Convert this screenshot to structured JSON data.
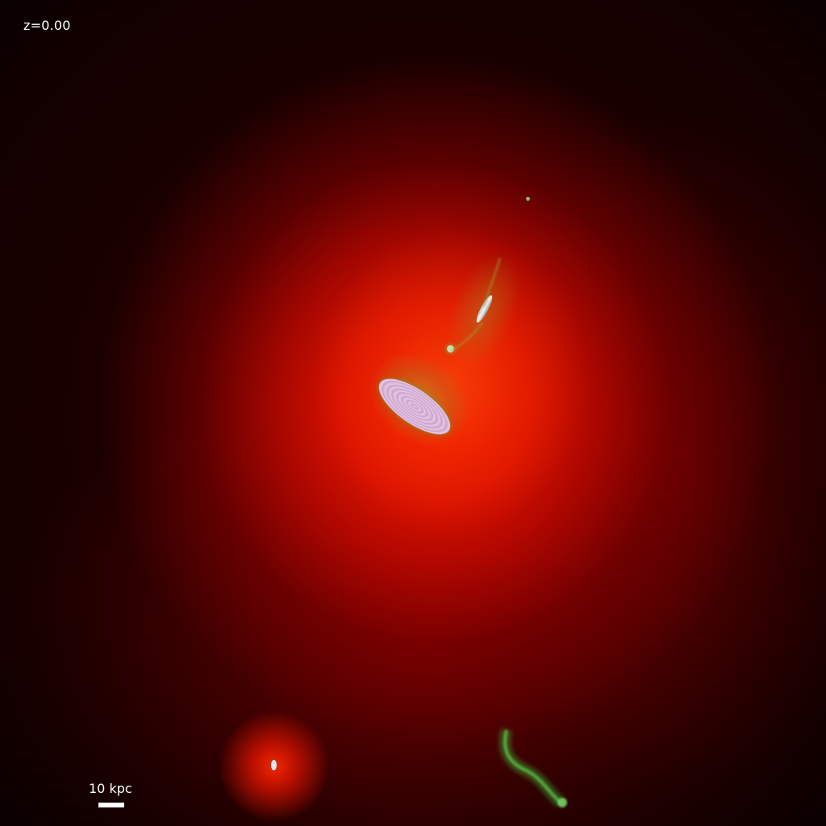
{
  "image": {
    "redshift_label": "z=0.00",
    "scale_bar": {
      "label": "10 kpc"
    },
    "colors": {
      "background": "#1a0000",
      "halo": "#e81400",
      "galaxy": "#e0c0e0",
      "stream": "#3a8a30",
      "text": "#ffffff"
    }
  }
}
